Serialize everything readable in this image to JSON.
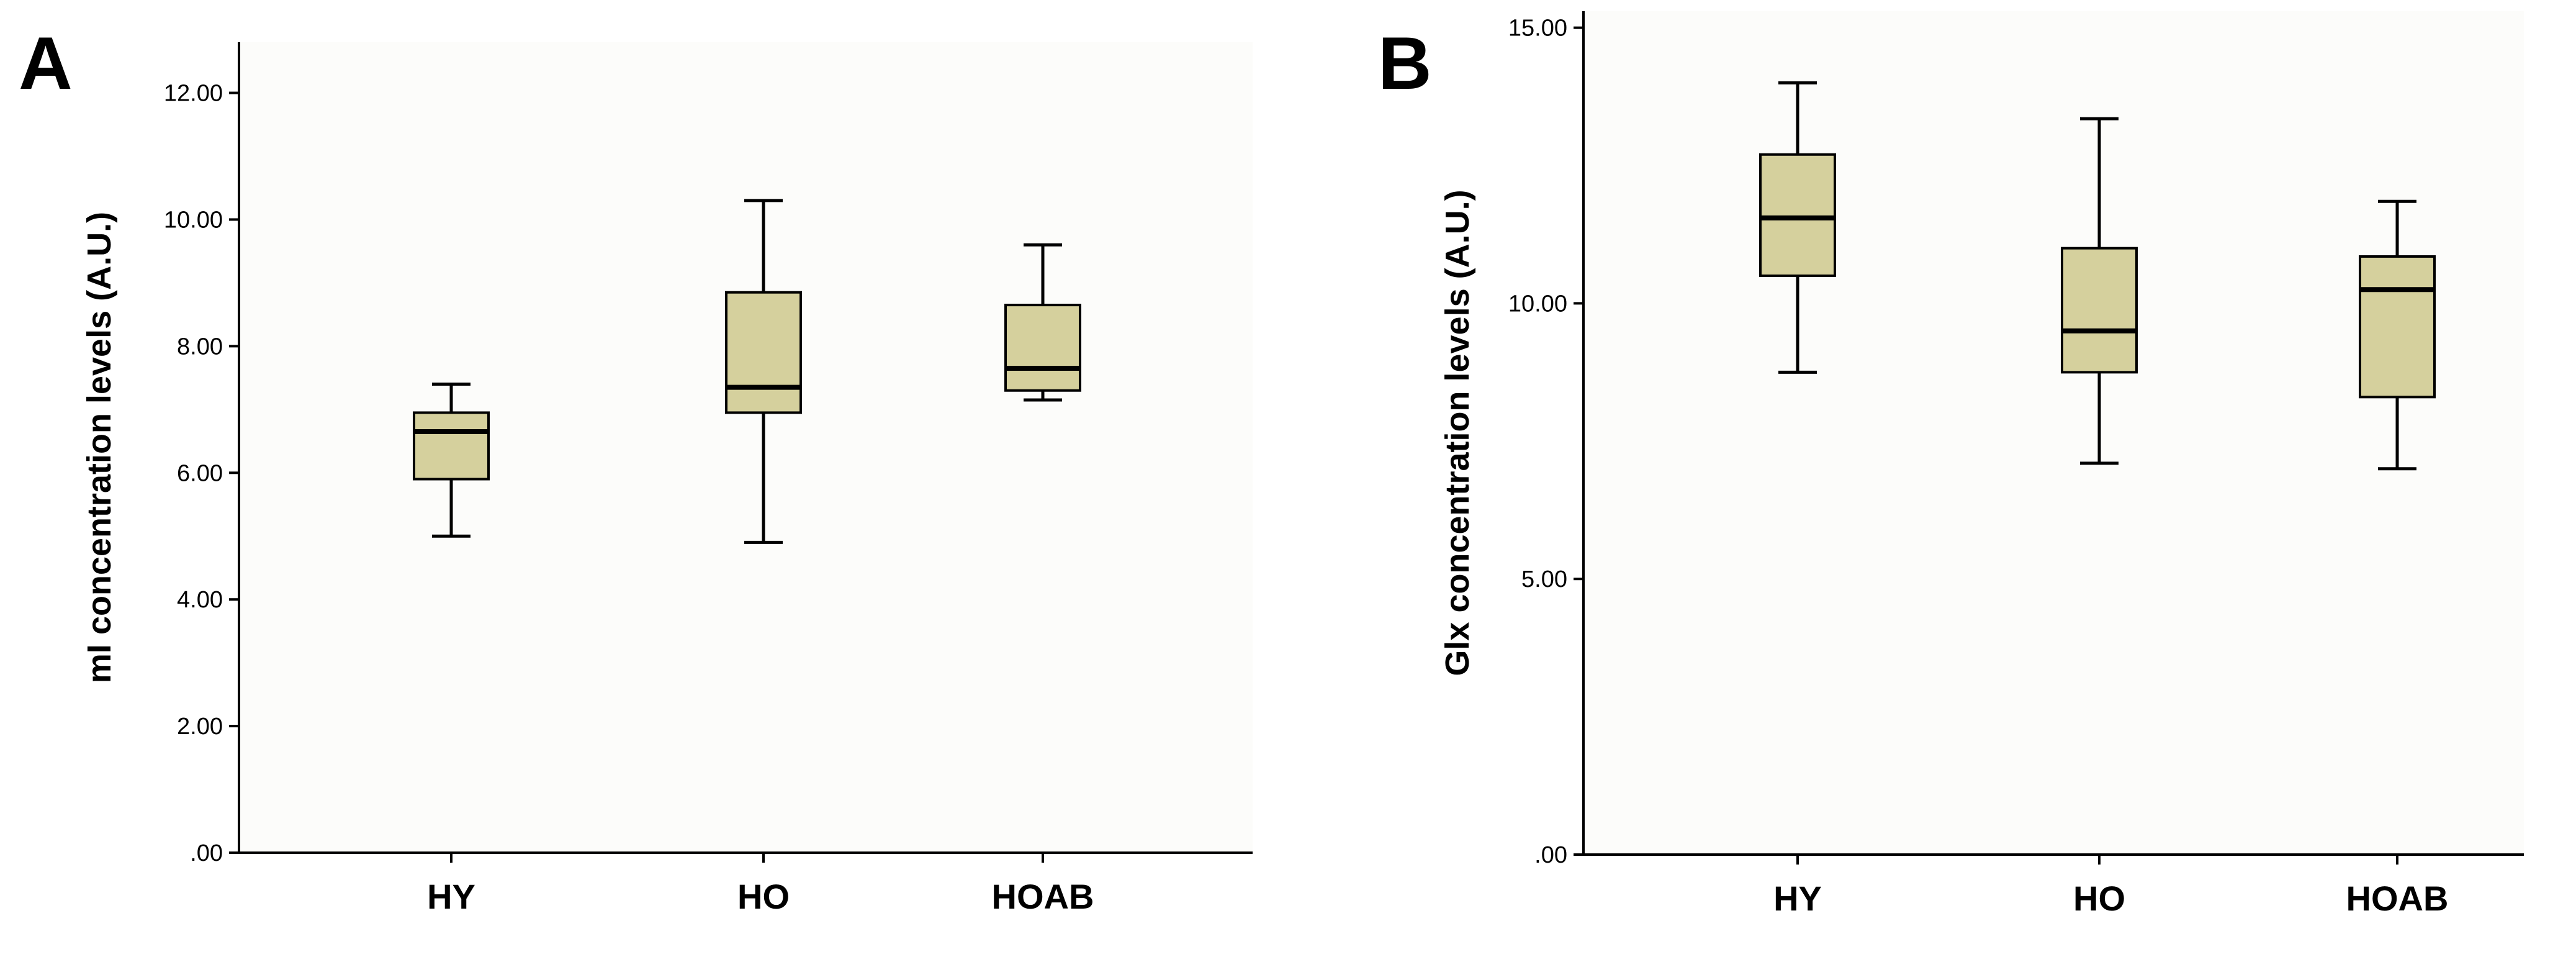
{
  "colors": {
    "box_fill": "#D5D09D",
    "plot_background": "#FCFCFA",
    "line": "#000000"
  },
  "chart_data": [
    {
      "panel_label": "A",
      "type": "box",
      "title": "",
      "xlabel": "",
      "ylabel": "mI concentration levels (A.U.)",
      "ylim": [
        0,
        12.8
      ],
      "yticks": [
        0,
        2,
        4,
        6,
        8,
        10,
        12
      ],
      "ytick_labels": [
        ".00",
        "2.00",
        "4.00",
        "6.00",
        "8.00",
        "10.00",
        "12.00"
      ],
      "categories": [
        "HY",
        "HO",
        "HOAB"
      ],
      "boxes": [
        {
          "category": "HY",
          "min": 5.0,
          "q1": 5.9,
          "median": 6.65,
          "q3": 6.95,
          "max": 7.4
        },
        {
          "category": "HO",
          "min": 4.9,
          "q1": 6.95,
          "median": 7.35,
          "q3": 8.85,
          "max": 10.3
        },
        {
          "category": "HOAB",
          "min": 7.15,
          "q1": 7.3,
          "median": 7.65,
          "q3": 8.65,
          "max": 9.6
        }
      ],
      "grid": false,
      "legend": "none"
    },
    {
      "panel_label": "B",
      "type": "box",
      "title": "",
      "xlabel": "",
      "ylabel": "Glx concentration levels (A.U.)",
      "ylim": [
        0,
        15.3
      ],
      "yticks": [
        0,
        5,
        10,
        15
      ],
      "ytick_labels": [
        ".00",
        "5.00",
        "10.00",
        "15.00"
      ],
      "categories": [
        "HY",
        "HO",
        "HOAB"
      ],
      "boxes": [
        {
          "category": "HY",
          "min": 8.75,
          "q1": 10.5,
          "median": 11.55,
          "q3": 12.7,
          "max": 14.0
        },
        {
          "category": "HO",
          "min": 7.1,
          "q1": 8.75,
          "median": 9.5,
          "q3": 11.0,
          "max": 13.35
        },
        {
          "category": "HOAB",
          "min": 7.0,
          "q1": 8.3,
          "median": 10.25,
          "q3": 10.85,
          "max": 11.85
        }
      ],
      "grid": false,
      "legend": "none"
    }
  ]
}
